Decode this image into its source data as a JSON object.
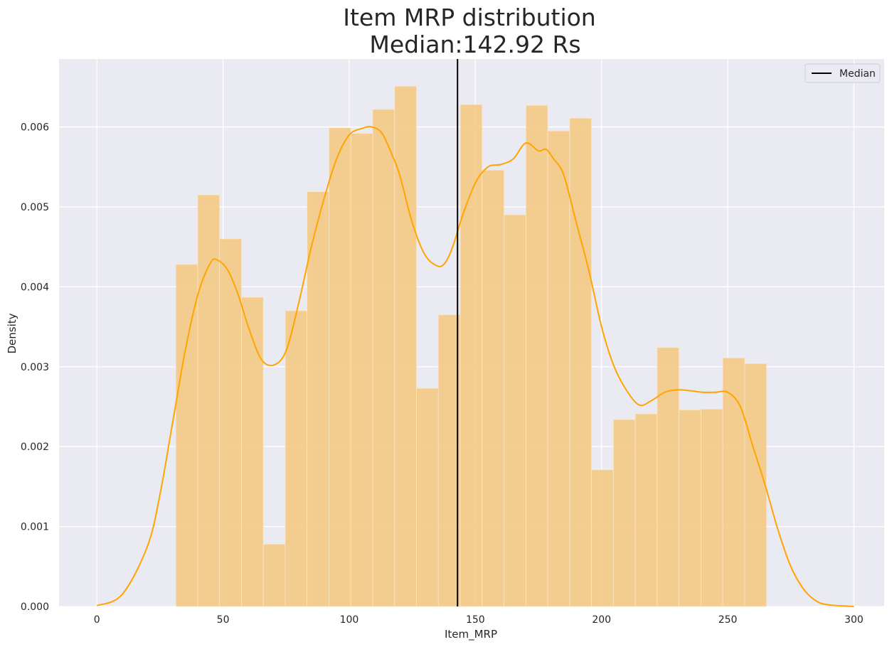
{
  "chart_data": {
    "type": "bar",
    "title": "Item MRP distribution",
    "subtitle": "Median:142.92 Rs",
    "xlabel": "Item_MRP",
    "ylabel": "Density",
    "xlim": [
      -15,
      312
    ],
    "ylim": [
      0,
      0.00685
    ],
    "xticks": [
      0,
      50,
      100,
      150,
      200,
      250,
      300
    ],
    "yticks": [
      "0.000",
      "0.001",
      "0.002",
      "0.003",
      "0.004",
      "0.005",
      "0.006"
    ],
    "ytick_values": [
      0,
      0.001,
      0.002,
      0.003,
      0.004,
      0.005,
      0.006
    ],
    "grid": true,
    "legend": {
      "position": "top-right",
      "entries": [
        "Median"
      ]
    },
    "median": 142.92,
    "bin_edges": [
      31.29,
      39.96,
      48.63,
      57.3,
      65.97,
      74.64,
      83.31,
      91.98,
      100.65,
      109.32,
      117.99,
      126.66,
      135.33,
      144.0,
      152.67,
      161.34,
      170.01,
      178.68,
      187.35,
      196.02,
      204.69,
      213.36,
      222.03,
      230.7,
      239.37,
      248.04,
      256.71,
      265.38
    ],
    "bin_edges_end": 267.0,
    "density": [
      0.00428,
      0.00515,
      0.0046,
      0.00387,
      0.00078,
      0.0037,
      0.00519,
      0.00599,
      0.00592,
      0.00622,
      0.00651,
      0.00273,
      0.00365,
      0.00628,
      0.00546,
      0.0049,
      0.00627,
      0.00595,
      0.00611,
      0.00171,
      0.00234,
      0.00241,
      0.00324,
      0.00246,
      0.00247,
      0.00311,
      0.00304
    ],
    "kde": {
      "x": [
        0,
        10,
        20,
        25,
        30,
        35,
        40,
        45,
        48,
        52,
        56,
        60,
        65,
        70,
        75,
        80,
        85,
        90,
        95,
        100,
        105,
        109,
        113,
        117,
        120,
        125,
        130,
        135,
        138,
        141,
        145,
        150,
        155,
        160,
        165,
        170,
        175,
        178,
        181,
        185,
        190,
        195,
        200,
        205,
        210,
        215,
        220,
        225,
        230,
        235,
        240,
        245,
        250,
        255,
        260,
        265,
        270,
        275,
        280,
        285,
        290,
        300
      ],
      "y": [
        1e-05,
        0.00015,
        0.00075,
        0.0014,
        0.0023,
        0.0032,
        0.0039,
        0.0043,
        0.00433,
        0.0042,
        0.0039,
        0.0035,
        0.0031,
        0.00302,
        0.0032,
        0.0038,
        0.0045,
        0.0051,
        0.0056,
        0.0059,
        0.00598,
        0.006,
        0.00592,
        0.00565,
        0.0054,
        0.0048,
        0.0044,
        0.00426,
        0.0043,
        0.0045,
        0.0049,
        0.0053,
        0.0055,
        0.00553,
        0.0056,
        0.0058,
        0.0057,
        0.00572,
        0.0056,
        0.0054,
        0.0048,
        0.0042,
        0.0035,
        0.003,
        0.0027,
        0.00252,
        0.00258,
        0.00268,
        0.00271,
        0.0027,
        0.00268,
        0.00268,
        0.00268,
        0.0025,
        0.002,
        0.0015,
        0.00095,
        0.0005,
        0.00022,
        7e-05,
        2e-05,
        0.0
      ]
    },
    "colors": {
      "background": "#eaeaf2",
      "grid": "#ffffff",
      "bars": "#f5c77e",
      "kde": "#ffa500",
      "median": "#000000"
    }
  }
}
